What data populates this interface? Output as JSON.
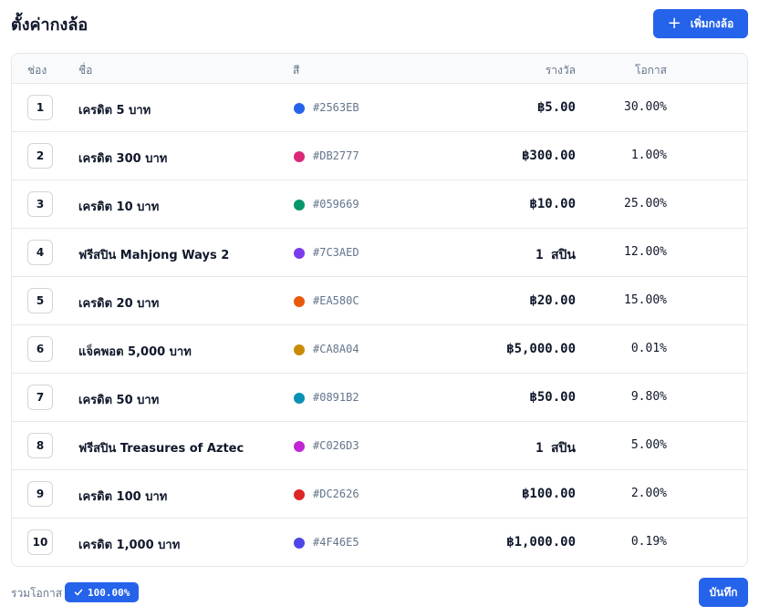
{
  "header": {
    "title": "ตั้งค่ากงล้อ",
    "add_label": "เพิ่มกงล้อ",
    "add_icon": "plus-icon"
  },
  "table": {
    "columns": {
      "slot": "ช่อง",
      "name": "ชื่อ",
      "color": "สี",
      "prize": "รางวัล",
      "chance": "โอกาส"
    },
    "rows": [
      {
        "slot": "1",
        "name": "เครดิต 5 บาท",
        "color": "#2563EB",
        "prize": "฿5.00",
        "chance": "30.00%"
      },
      {
        "slot": "2",
        "name": "เครดิต 300 บาท",
        "color": "#DB2777",
        "prize": "฿300.00",
        "chance": "1.00%"
      },
      {
        "slot": "3",
        "name": "เครดิต 10 บาท",
        "color": "#059669",
        "prize": "฿10.00",
        "chance": "25.00%"
      },
      {
        "slot": "4",
        "name": "ฟรีสปิน Mahjong Ways 2",
        "color": "#7C3AED",
        "prize": "1 สปิน",
        "chance": "12.00%"
      },
      {
        "slot": "5",
        "name": "เครดิต 20 บาท",
        "color": "#EA580C",
        "prize": "฿20.00",
        "chance": "15.00%"
      },
      {
        "slot": "6",
        "name": "แจ็คพอต 5,000 บาท",
        "color": "#CA8A04",
        "prize": "฿5,000.00",
        "chance": "0.01%"
      },
      {
        "slot": "7",
        "name": "เครดิต 50 บาท",
        "color": "#0891B2",
        "prize": "฿50.00",
        "chance": "9.80%"
      },
      {
        "slot": "8",
        "name": "ฟรีสปิน Treasures of Aztec",
        "color": "#C026D3",
        "prize": "1 สปิน",
        "chance": "5.00%"
      },
      {
        "slot": "9",
        "name": "เครดิต 100 บาท",
        "color": "#DC2626",
        "prize": "฿100.00",
        "chance": "2.00%"
      },
      {
        "slot": "10",
        "name": "เครดิต 1,000 บาท",
        "color": "#4F46E5",
        "prize": "฿1,000.00",
        "chance": "0.19%"
      }
    ]
  },
  "footer": {
    "total_label": "รวมโอกาส",
    "total_value": "100.00%",
    "total_icon": "check-icon",
    "save_label": "บันทึก"
  },
  "colors": {
    "accent": "#2563EB"
  }
}
